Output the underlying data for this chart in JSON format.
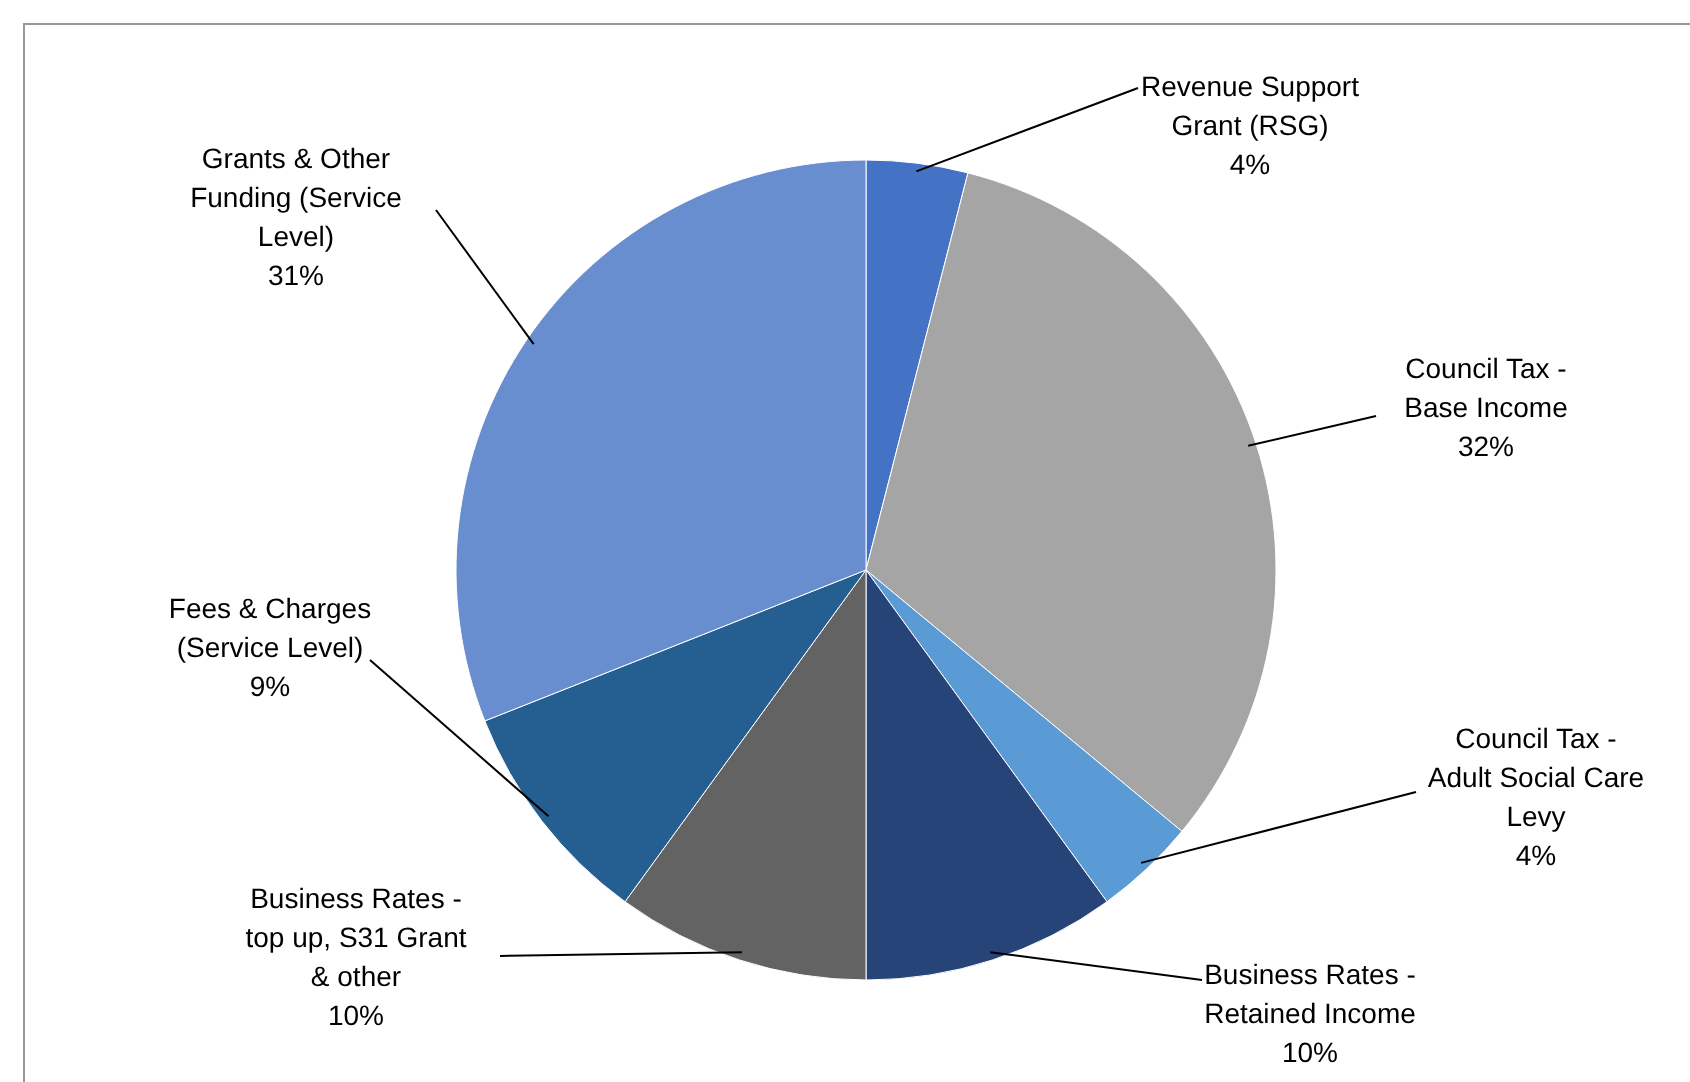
{
  "chart_data": {
    "type": "pie",
    "categories": [
      "Revenue Support Grant (RSG)",
      "Council Tax - Base Income",
      "Council Tax - Adult Social Care Levy",
      "Business Rates - Retained Income",
      "Business Rates - top up, S31 Grant & other",
      "Fees & Charges (Service Level)",
      "Grants & Other Funding (Service Level)"
    ],
    "values": [
      4,
      32,
      4,
      10,
      10,
      9,
      31
    ],
    "value_labels": [
      "4%",
      "32%",
      "4%",
      "10%",
      "10%",
      "9%",
      "31%"
    ],
    "colors": [
      "#4472c4",
      "#a5a5a5",
      "#5b9bd5",
      "#264478",
      "#636363",
      "#255e91",
      "#698ed0"
    ]
  }
}
